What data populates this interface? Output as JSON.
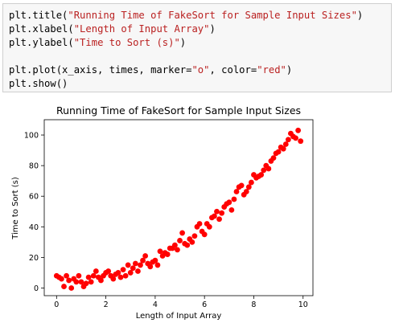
{
  "code": {
    "lines": [
      {
        "pre": "plt.title(",
        "str": "\"Running Time of FakeSort for Sample Input Sizes\"",
        "post": ")"
      },
      {
        "pre": "plt.xlabel(",
        "str": "\"Length of Input Array\"",
        "post": ")"
      },
      {
        "pre": "plt.ylabel(",
        "str": "\"Time to Sort (s)\"",
        "post": ")"
      },
      {
        "pre": "",
        "str": "",
        "post": ""
      },
      {
        "pre": "plt.plot(x_axis, times, marker=",
        "str": "\"o\"",
        "mid": ", color=",
        "str2": "\"red\"",
        "post": ")"
      },
      {
        "pre": "plt.show()",
        "str": "",
        "post": ""
      }
    ]
  },
  "colors": {
    "string": "#ba2121",
    "marker": "#ff0000"
  },
  "chart_data": {
    "type": "scatter",
    "title": "Running Time of FakeSort for Sample Input Sizes",
    "xlabel": "Length of Input Array",
    "ylabel": "Time to Sort (s)",
    "xlim": [
      -0.5,
      10.4
    ],
    "ylim": [
      -5,
      110
    ],
    "xticks": [
      0,
      2,
      4,
      6,
      8,
      10
    ],
    "yticks": [
      0,
      20,
      40,
      60,
      80,
      100
    ],
    "grid": false,
    "marker": "o",
    "color": "#ff0000",
    "series": [
      {
        "x": [
          0.0,
          0.1,
          0.2,
          0.3,
          0.4,
          0.5,
          0.6,
          0.7,
          0.8,
          0.9,
          1.0,
          1.1,
          1.2,
          1.3,
          1.4,
          1.5,
          1.6,
          1.7,
          1.8,
          1.9,
          2.0,
          2.1,
          2.2,
          2.3,
          2.4,
          2.5,
          2.6,
          2.7,
          2.8,
          2.9,
          3.0,
          3.1,
          3.2,
          3.3,
          3.4,
          3.5,
          3.6,
          3.7,
          3.8,
          3.9,
          4.0,
          4.1,
          4.2,
          4.3,
          4.4,
          4.5,
          4.6,
          4.7,
          4.8,
          4.9,
          5.0,
          5.1,
          5.2,
          5.3,
          5.4,
          5.5,
          5.6,
          5.7,
          5.8,
          5.9,
          6.0,
          6.1,
          6.2,
          6.3,
          6.4,
          6.5,
          6.6,
          6.7,
          6.8,
          6.9,
          7.0,
          7.1,
          7.2,
          7.3,
          7.4,
          7.5,
          7.6,
          7.7,
          7.8,
          7.9,
          8.0,
          8.1,
          8.2,
          8.3,
          8.4,
          8.5,
          8.6,
          8.7,
          8.8,
          8.9,
          9.0,
          9.1,
          9.2,
          9.3,
          9.4,
          9.5,
          9.6,
          9.7,
          9.8,
          9.9
        ],
        "y": [
          8,
          7,
          6,
          1,
          8,
          5,
          0,
          6,
          4,
          8,
          4,
          1,
          3,
          7,
          4,
          8,
          11,
          7,
          5,
          8,
          10,
          11,
          8,
          6,
          9,
          10,
          7,
          12,
          8,
          15,
          10,
          13,
          16,
          11,
          15,
          18,
          21,
          16,
          14,
          17,
          18,
          15,
          24,
          21,
          23,
          22,
          26,
          26,
          28,
          25,
          31,
          36,
          29,
          28,
          32,
          30,
          34,
          40,
          42,
          37,
          35,
          42,
          40,
          46,
          47,
          50,
          45,
          49,
          53,
          55,
          56,
          51,
          58,
          63,
          66,
          67,
          61,
          63,
          66,
          69,
          74,
          72,
          73,
          74,
          77,
          80,
          78,
          83,
          85,
          88,
          89,
          92,
          91,
          94,
          97,
          101,
          99,
          98,
          103,
          96
        ]
      }
    ]
  }
}
